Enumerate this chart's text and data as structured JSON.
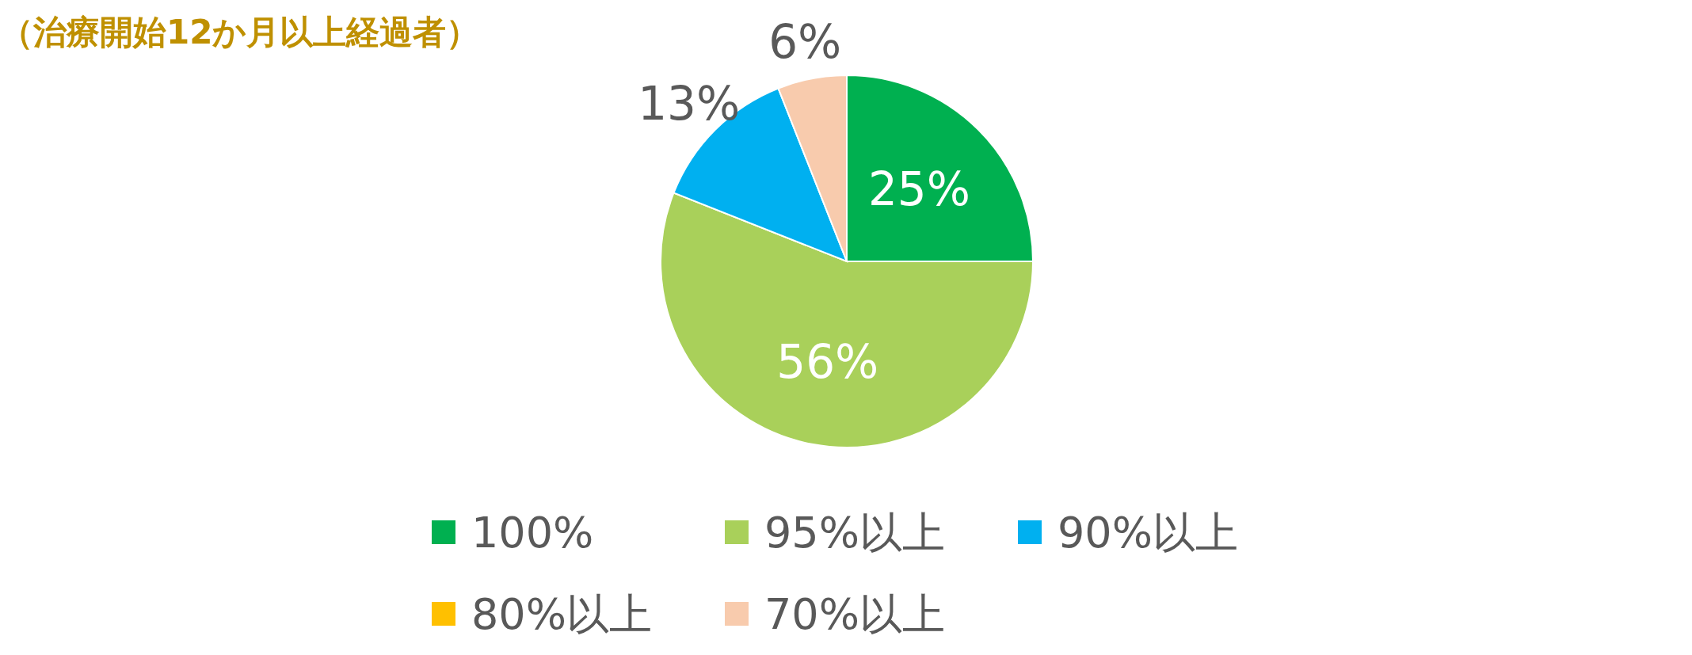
{
  "chart_data": {
    "type": "pie",
    "title": "（治療開始12か月以上経過者）",
    "categories": [
      "100%",
      "95%以上",
      "90%以上",
      "80%以上",
      "70%以上"
    ],
    "values": [
      25,
      56,
      13,
      0,
      6
    ],
    "colors": [
      "#00b050",
      "#a9d05a",
      "#00b0f0",
      "#ffc000",
      "#f8cbad"
    ],
    "value_labels": [
      "25%",
      "56%",
      "13%",
      null,
      "6%"
    ],
    "legend": "bottom"
  }
}
